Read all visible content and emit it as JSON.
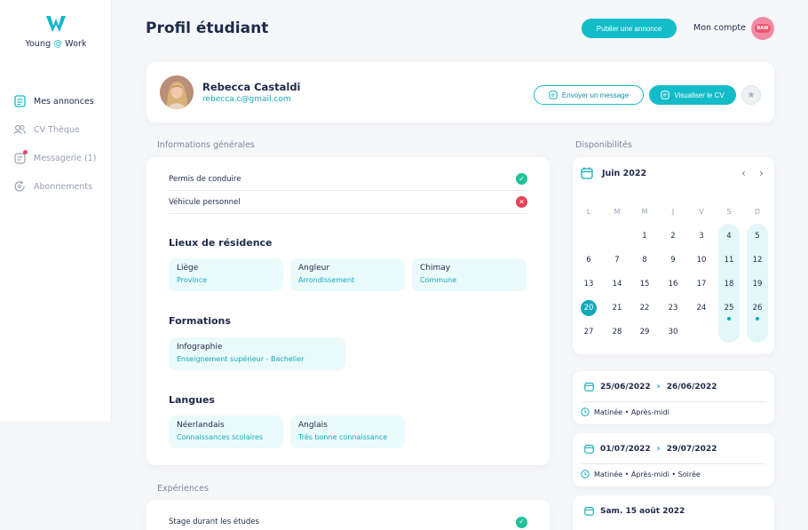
{
  "brand": {
    "name_pre": "Young ",
    "name_at": "@",
    "name_post": " Work"
  },
  "sidebar": {
    "items": [
      {
        "label": "Mes annonces",
        "icon": "document-icon",
        "active": true
      },
      {
        "label": "CV Thèque",
        "icon": "users-icon",
        "active": false
      },
      {
        "label": "Messagerie (1)",
        "icon": "message-icon",
        "active": false,
        "badge": true
      },
      {
        "label": "Abonnements",
        "icon": "refresh-icon",
        "active": false
      }
    ]
  },
  "header": {
    "title": "Profil étudiant",
    "publish_label": "Publier une annonce",
    "account_label": "Mon compte",
    "avatar_text": "BAW"
  },
  "profile": {
    "name": "Rebecca Castaldi",
    "email": "rebecca.c@gmail.com",
    "message_label": "Envoyer un message",
    "cv_label": "Visualiser le CV"
  },
  "general": {
    "section_label": "Informations générales",
    "rows": [
      {
        "label": "Permis de conduire",
        "status": "ok"
      },
      {
        "label": "Véhicule personnel",
        "status": "no"
      }
    ],
    "residence_title": "Lieux de résidence",
    "residence": [
      {
        "title": "Liège",
        "sub": "Province"
      },
      {
        "title": "Angleur",
        "sub": "Arrondissement"
      },
      {
        "title": "Chimay",
        "sub": "Commune"
      }
    ],
    "formations_title": "Formations",
    "formations": [
      {
        "title": "Infographie",
        "sub": "Enseignement supérieur - Bachelier"
      }
    ],
    "langues_title": "Langues",
    "langues": [
      {
        "title": "Néerlandais",
        "sub": "Connaissances scolaires"
      },
      {
        "title": "Anglais",
        "sub": "Très bonne connaissance"
      }
    ]
  },
  "experiences": {
    "section_label": "Expériences",
    "rows": [
      {
        "label": "Stage durant les études",
        "status": "ok"
      }
    ]
  },
  "availability": {
    "section_label": "Disponibilités",
    "calendar": {
      "month": "Juin 2022",
      "weekdays": [
        "L",
        "M",
        "M",
        "J",
        "V",
        "S",
        "D"
      ],
      "weeks": [
        [
          "",
          "",
          "1",
          "2",
          "3",
          "4",
          "5"
        ],
        [
          "6",
          "7",
          "8",
          "9",
          "10",
          "11",
          "12"
        ],
        [
          "13",
          "14",
          "15",
          "16",
          "17",
          "18",
          "19"
        ],
        [
          "20",
          "21",
          "22",
          "23",
          "24",
          "25",
          "26"
        ],
        [
          "27",
          "28",
          "29",
          "30",
          "",
          "",
          ""
        ]
      ],
      "today": "20",
      "marked": [
        "25",
        "26"
      ]
    },
    "slots": [
      {
        "from": "25/06/2022",
        "to": "26/06/2022",
        "times": "Matinée • Après-midi"
      },
      {
        "from": "01/07/2022",
        "to": "29/07/2022",
        "times": "Matinée • Après-midi • Soirée"
      },
      {
        "from": "Sam. 15 août 2022",
        "to": "",
        "times": ""
      }
    ]
  },
  "colors": {
    "accent": "#13bcc9",
    "navy": "#1e2a4a",
    "danger": "#e6405a",
    "success": "#21c19a"
  }
}
